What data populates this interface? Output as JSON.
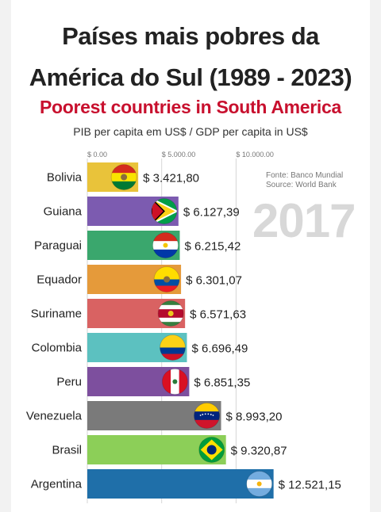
{
  "title_line1": "Países mais pobres da",
  "title_line2": "América do Sul (1989 - 2023)",
  "subtitle": "Poorest countries in South America",
  "unit_label": "PIB per capita em US$ / GDP per capita in US$",
  "source_line1": "Fonte: Banco Mundial",
  "source_line2": "Source: World Bank",
  "year": "2017",
  "colors": {
    "subtitle": "#c8102e",
    "year": "#d8d8d8"
  },
  "chart_data": {
    "type": "bar",
    "orientation": "horizontal",
    "year": "2017",
    "title": "Poorest countries in South America",
    "xlabel": "PIB per capita em US$ / GDP per capita in US$",
    "xlim": [
      0,
      12600
    ],
    "x_ticks": [
      {
        "value": 0,
        "label": "$ 0.00"
      },
      {
        "value": 5000,
        "label": "$ 5.000.00"
      },
      {
        "value": 10000,
        "label": "$ 10.000.00"
      }
    ],
    "categories": [
      "Bolivia",
      "Guiana",
      "Paraguai",
      "Equador",
      "Suriname",
      "Colombia",
      "Peru",
      "Venezuela",
      "Brasil",
      "Argentina"
    ],
    "values": [
      3421.8,
      6127.39,
      6215.42,
      6301.07,
      6571.63,
      6696.49,
      6851.35,
      8993.2,
      9320.87,
      12521.15
    ],
    "value_labels": [
      "$ 3.421,80",
      "$ 6.127,39",
      "$ 6.215,42",
      "$ 6.301,07",
      "$ 6.571,63",
      "$ 6.696,49",
      "$ 6.851,35",
      "$ 8.993,20",
      "$ 9.320,87",
      "$ 12.521,15"
    ],
    "bar_colors": [
      "#e9c33a",
      "#7c5bb0",
      "#3aa76d",
      "#e59a3a",
      "#d96262",
      "#5cc1c0",
      "#7d4f9e",
      "#7a7a7a",
      "#8ccf58",
      "#1f6fa9"
    ],
    "flags": [
      "bolivia-flag",
      "guyana-flag",
      "paraguay-flag",
      "ecuador-flag",
      "suriname-flag",
      "colombia-flag",
      "peru-flag",
      "venezuela-flag",
      "brazil-flag",
      "argentina-flag"
    ]
  }
}
